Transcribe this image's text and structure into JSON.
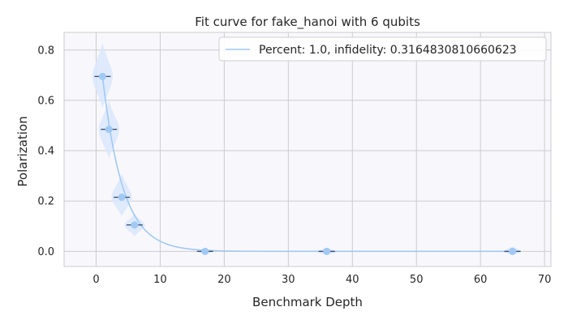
{
  "chart_data": {
    "type": "scatter",
    "title": "Fit curve for fake_hanoi with 6 qubits",
    "xlabel": "Benchmark Depth",
    "ylabel": "Polarization",
    "xlim": [
      -5,
      71
    ],
    "ylim": [
      -0.06,
      0.87
    ],
    "xticks": [
      0,
      10,
      20,
      30,
      40,
      50,
      60,
      70
    ],
    "yticks": [
      0.0,
      0.2,
      0.4,
      0.6,
      0.8
    ],
    "xtick_labels": [
      "0",
      "10",
      "20",
      "30",
      "40",
      "50",
      "60",
      "70"
    ],
    "ytick_labels": [
      "0.0",
      "0.2",
      "0.4",
      "0.6",
      "0.8"
    ],
    "grid": true,
    "legend_position": "top-right",
    "series": [
      {
        "name": "Percent: 1.0, infidelity: 0.3164830810660623",
        "kind": "fit-curve",
        "model": "exponential-decay",
        "decay_rate": 0.3165,
        "color": "#a1c9f4"
      }
    ],
    "points": [
      {
        "x": 1,
        "y": 0.695,
        "spread_low": 0.57,
        "spread_high": 0.83,
        "spread_width": 3.2
      },
      {
        "x": 2,
        "y": 0.485,
        "spread_low": 0.37,
        "spread_high": 0.6,
        "spread_width": 3.2
      },
      {
        "x": 4,
        "y": 0.215,
        "spread_low": 0.14,
        "spread_high": 0.31,
        "spread_width": 3.2
      },
      {
        "x": 6,
        "y": 0.105,
        "spread_low": 0.06,
        "spread_high": 0.15,
        "spread_width": 3.2
      },
      {
        "x": 17,
        "y": 0.0,
        "spread_low": -0.01,
        "spread_high": 0.01,
        "spread_width": 2.8
      },
      {
        "x": 36,
        "y": 0.0,
        "spread_low": -0.015,
        "spread_high": 0.015,
        "spread_width": 3.2
      },
      {
        "x": 65,
        "y": 0.0,
        "spread_low": -0.015,
        "spread_high": 0.02,
        "spread_width": 3.0
      }
    ],
    "colors": {
      "plot_background": "#f8f8fc",
      "grid": "#cccccc",
      "spine": "#cccccc",
      "point": "#a1c9f4",
      "violin": "#dbe8fb",
      "mean_marker": "#3b4a6b"
    }
  }
}
